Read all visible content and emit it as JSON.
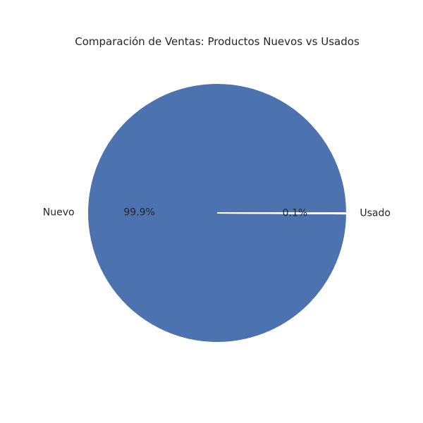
{
  "chart_data": {
    "type": "pie",
    "title": "Comparación de Ventas: Productos Nuevos vs Usados",
    "categories": [
      "Nuevo",
      "Usado"
    ],
    "values": [
      99.9,
      0.1
    ],
    "percent_labels": [
      "99.9%",
      "0.1%"
    ],
    "colors": [
      "#4c72b0",
      "#4c72b0"
    ],
    "edge_color": "#ffffff",
    "start_angle_deg": 0,
    "direction": "counterclockwise"
  }
}
